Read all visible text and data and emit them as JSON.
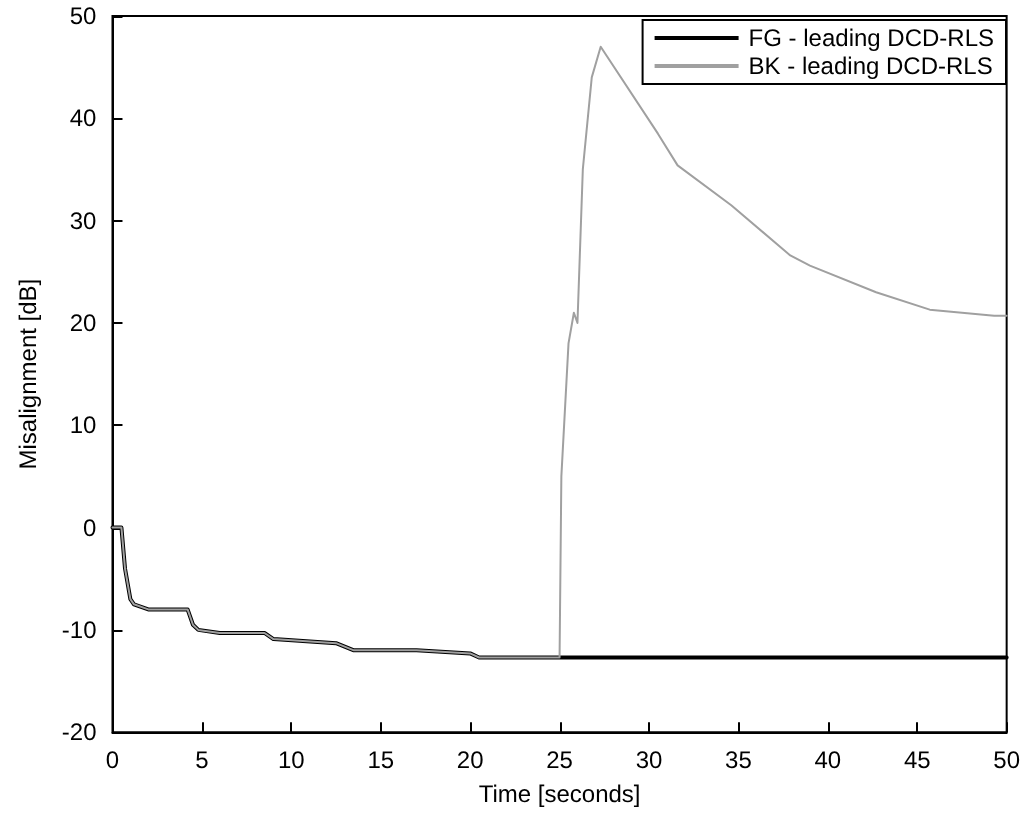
{
  "chart_data": {
    "type": "line",
    "xlabel": "Time [seconds]",
    "ylabel": "Misalignment [dB]",
    "xlim": [
      0,
      50
    ],
    "ylim": [
      -20,
      50
    ],
    "xticks": [
      0,
      5,
      10,
      15,
      20,
      25,
      30,
      35,
      40,
      45,
      50
    ],
    "yticks": [
      -20,
      -10,
      0,
      10,
      20,
      30,
      40,
      50
    ],
    "grid": false,
    "legend": "top right",
    "marker": "none",
    "line_style": "solid",
    "series": [
      {
        "name": "FG - leading DCD-RLS",
        "color": "#000000",
        "x": [
          0,
          0.5,
          0.7,
          1.0,
          1.2,
          2,
          4.2,
          4.5,
          4.8,
          6,
          8.5,
          9,
          12.5,
          13.5,
          17,
          20,
          20.5,
          25,
          50
        ],
        "values": [
          0,
          0,
          -4,
          -7,
          -7.5,
          -8,
          -8,
          -9.5,
          -10,
          -10.3,
          -10.3,
          -10.9,
          -11.3,
          -12,
          -12,
          -12.3,
          -12.7,
          -12.7,
          -12.7
        ]
      },
      {
        "name": "BK - leading DCD-RLS",
        "color": "#a0a0a0",
        "x": [
          0,
          0.5,
          0.7,
          1.0,
          1.2,
          2,
          4.2,
          4.5,
          4.8,
          6,
          8.5,
          9,
          12.5,
          13.5,
          17,
          20,
          20.5,
          25,
          25.1,
          25.5,
          25.8,
          26.0,
          26.3,
          26.8,
          27.3,
          30.5,
          31.6,
          34.6,
          37.9,
          39,
          42.7,
          45.7,
          49.3,
          50
        ],
        "values": [
          0,
          0,
          -4,
          -7,
          -7.5,
          -8,
          -8,
          -9.5,
          -10,
          -10.3,
          -10.3,
          -10.9,
          -11.3,
          -12,
          -12,
          -12.3,
          -12.7,
          -12.7,
          5,
          18,
          21,
          20,
          35,
          44,
          47,
          38.5,
          35.4,
          31.5,
          26.6,
          25.6,
          23,
          21.3,
          20.7,
          20.7
        ]
      }
    ]
  }
}
